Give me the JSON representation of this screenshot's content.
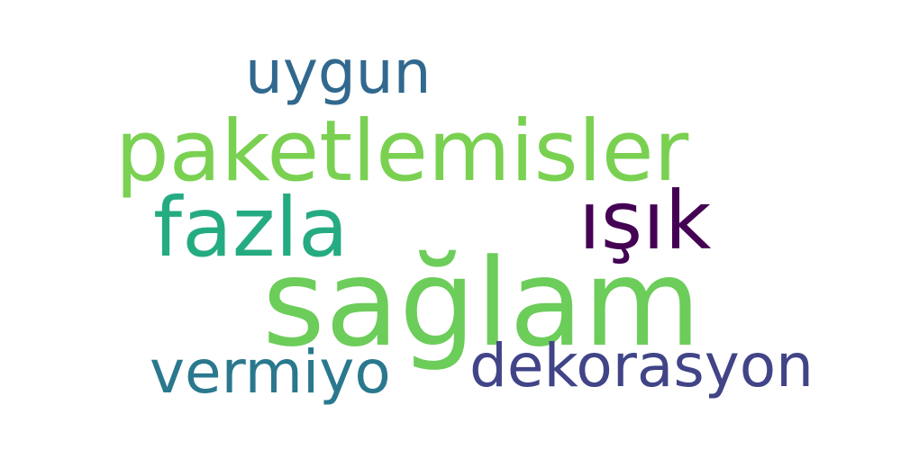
{
  "wordcloud": {
    "background": "#ffffff",
    "words": {
      "uygun": {
        "text": "uygun",
        "color": "#31688e"
      },
      "paketlemisler": {
        "text": "paketlemisler",
        "color": "#7ad151"
      },
      "fazla": {
        "text": "fazla",
        "color": "#25ab82"
      },
      "isik": {
        "text": "ışık",
        "color": "#440154"
      },
      "saglam": {
        "text": "sağlam",
        "color": "#6ccd5a"
      },
      "vermiyo": {
        "text": "vermiyo",
        "color": "#2a788e"
      },
      "dekorasyon": {
        "text": "dekorasyon",
        "color": "#414487"
      }
    }
  }
}
